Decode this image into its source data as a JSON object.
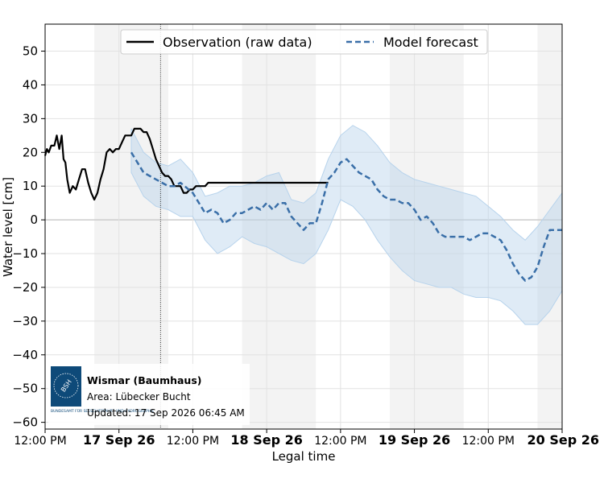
{
  "chart_data": {
    "type": "line",
    "xlabel": "Legal time",
    "ylabel": "Water level [cm]",
    "ylim": [
      -62,
      58
    ],
    "xlim_hours": [
      0,
      84
    ],
    "y_ticks": [
      50,
      40,
      30,
      20,
      10,
      0,
      -10,
      -20,
      -30,
      -40,
      -50,
      -60
    ],
    "y_tick_labels": [
      "50",
      "40",
      "30",
      "20",
      "10",
      "0",
      "−10",
      "−20",
      "−30",
      "−40",
      "−50",
      "−60"
    ],
    "x_ticks": [
      {
        "label": "12:00 PM",
        "bold": false
      },
      {
        "label": "17 Sep 26",
        "bold": true
      },
      {
        "label": "12:00 PM",
        "bold": false
      },
      {
        "label": "18 Sep 26",
        "bold": true
      },
      {
        "label": "12:00 PM",
        "bold": false
      },
      {
        "label": "19 Sep 26",
        "bold": true
      },
      {
        "label": "12:00 PM",
        "bold": false
      },
      {
        "label": "20 Sep 26",
        "bold": true
      }
    ],
    "grid": true,
    "legend_position": "top-center",
    "series": [
      {
        "name": "Observation (raw data)",
        "style": "solid",
        "color": "#000000",
        "x": [
          0,
          0.3,
          0.6,
          1.0,
          1.5,
          1.9,
          2.3,
          2.7,
          3.0,
          3.3,
          3.6,
          4.0,
          4.5,
          5.0,
          5.5,
          6.0,
          6.5,
          7.0,
          7.5,
          8.0,
          8.5,
          9.0,
          9.5,
          10.0,
          10.5,
          11.0,
          11.5,
          12.0,
          12.5,
          13.0,
          13.5,
          14.0,
          14.5,
          15.0,
          15.5,
          16.0,
          16.5,
          17.0,
          17.5,
          18.0,
          18.5,
          19.0,
          19.5,
          20.0,
          20.5,
          21.0,
          21.5,
          22.0,
          22.5,
          23.0,
          23.5,
          24.0,
          24.5,
          25.0,
          25.5,
          26.0,
          26.5,
          27.0,
          27.5,
          28.0,
          28.5,
          29.0,
          29.5,
          30.0,
          30.5,
          31.0,
          31.5,
          32.0,
          32.5,
          33.0,
          33.5,
          34.0,
          34.5,
          35.0,
          35.5,
          36.0,
          36.5,
          37.0,
          37.5,
          38.0,
          38.5,
          39.0,
          39.5,
          40.0,
          40.5,
          41.0,
          41.5,
          42.0,
          42.5,
          43.0,
          43.5,
          44.0,
          44.5,
          45.0,
          45.5,
          46.0
        ],
        "y": [
          19,
          21,
          20,
          22,
          22,
          25,
          21,
          25,
          18,
          17,
          12,
          8,
          10,
          9,
          12,
          15,
          15,
          11,
          8,
          6,
          8,
          12,
          15,
          20,
          21,
          20,
          21,
          21,
          23,
          25,
          25,
          25,
          27,
          27,
          27,
          26,
          26,
          24,
          21,
          18,
          16,
          14,
          13,
          13,
          12,
          10,
          10,
          10,
          8,
          8,
          9,
          9,
          10,
          10,
          10,
          10,
          11,
          11,
          11,
          11,
          11,
          11,
          11,
          11,
          11,
          11,
          11,
          11,
          11,
          11,
          11,
          11,
          11,
          11,
          11,
          11,
          11,
          11,
          11,
          11,
          11,
          11,
          11,
          11,
          11,
          11,
          11,
          11,
          11,
          11,
          11,
          11,
          11,
          11,
          11,
          11
        ]
      },
      {
        "name": "Model forecast",
        "style": "dashed",
        "color": "#3a6fa8",
        "x": [
          14,
          16,
          18,
          19,
          20,
          21,
          22,
          24,
          26,
          27,
          28,
          29,
          30,
          31,
          32,
          34,
          35,
          36,
          37,
          38,
          39,
          40,
          41,
          42,
          43,
          44,
          45,
          46,
          47,
          48,
          49,
          50,
          51,
          52,
          53,
          54,
          55,
          56,
          57,
          58,
          59,
          60,
          61,
          62,
          63,
          64,
          65,
          66,
          67,
          68,
          69,
          70,
          71,
          72,
          73,
          74,
          75,
          76,
          77,
          78,
          79,
          80,
          81,
          82,
          83,
          84
        ],
        "y": [
          20,
          14,
          12,
          11,
          10,
          10,
          11,
          8,
          2,
          3,
          2,
          -1,
          0,
          2,
          2,
          4,
          3,
          5,
          3,
          5,
          5,
          1,
          -1,
          -3,
          -1,
          -1,
          5,
          12,
          14,
          17,
          18,
          16,
          14,
          13,
          12,
          9,
          7,
          6,
          6,
          5,
          5,
          3,
          0,
          1,
          -1,
          -4,
          -5,
          -5,
          -5,
          -5,
          -6,
          -5,
          -4,
          -4,
          -5,
          -6,
          -9,
          -13,
          -16,
          -18,
          -17,
          -14,
          -8,
          -3,
          -3,
          -3
        ]
      }
    ],
    "uncertainty_band": {
      "x": [
        14,
        16,
        18,
        20,
        22,
        24,
        26,
        28,
        30,
        32,
        34,
        36,
        38,
        40,
        42,
        44,
        46,
        48,
        50,
        52,
        54,
        56,
        58,
        60,
        62,
        64,
        66,
        68,
        70,
        72,
        74,
        76,
        78,
        80,
        82,
        84
      ],
      "upper": [
        27,
        20,
        17,
        16,
        18,
        14,
        7,
        8,
        10,
        10,
        11,
        13,
        14,
        6,
        5,
        8,
        18,
        25,
        28,
        26,
        22,
        17,
        14,
        12,
        11,
        10,
        9,
        8,
        7,
        4,
        1,
        -3,
        -6,
        -2,
        3,
        8
      ],
      "lower": [
        14,
        7,
        4,
        3,
        1,
        1,
        -6,
        -10,
        -8,
        -5,
        -7,
        -8,
        -10,
        -12,
        -13,
        -10,
        -3,
        6,
        4,
        0,
        -6,
        -11,
        -15,
        -18,
        -19,
        -20,
        -20,
        -22,
        -23,
        -23,
        -24,
        -27,
        -31,
        -31,
        -27,
        -21
      ],
      "color": "#b7d3ec"
    },
    "shaded_regions_hours": [
      [
        8,
        20
      ],
      [
        32,
        44
      ],
      [
        56,
        68
      ],
      [
        80,
        84
      ]
    ],
    "now_marker_hour": 18.75,
    "annotation": {
      "station": "Wismar (Baumhaus)",
      "area": "Area: Lübecker Bucht",
      "updated": "Updated: 17 Sep 2026 06:45 AM",
      "logo_text": "BSH",
      "logo_caption": "BUNDESAMT FÜR SEESCHIFFFAHRT UND HYDROGRAPHIE",
      "logo_color": "#0e4a79"
    }
  }
}
